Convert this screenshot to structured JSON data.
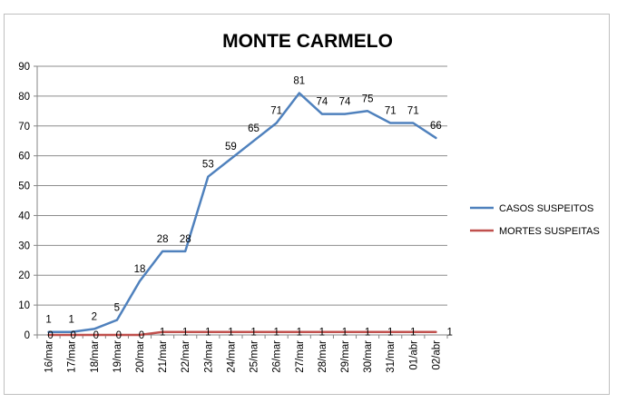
{
  "chart_data": {
    "type": "line",
    "title": "MONTE CARMELO",
    "xlabel": "",
    "ylabel": "",
    "ylim": [
      0,
      90
    ],
    "yticks": [
      0,
      10,
      20,
      30,
      40,
      50,
      60,
      70,
      80,
      90
    ],
    "grid": true,
    "legend_position": "right",
    "categories": [
      "16/mar",
      "17/mar",
      "18/mar",
      "19/mar",
      "20/mar",
      "21/mar",
      "22/mar",
      "23/mar",
      "24/mar",
      "25/mar",
      "26/mar",
      "27/mar",
      "28/mar",
      "29/mar",
      "30/mar",
      "31/mar",
      "01/abr",
      "02/abr"
    ],
    "series": [
      {
        "name": "CASOS SUSPEITOS",
        "color": "#4f81bd",
        "values": [
          1,
          1,
          2,
          5,
          18,
          28,
          28,
          53,
          59,
          65,
          71,
          81,
          74,
          74,
          75,
          71,
          71,
          66
        ]
      },
      {
        "name": "MORTES SUSPEITAS",
        "color": "#c0504d",
        "values": [
          0,
          0,
          0,
          0,
          0,
          1,
          1,
          1,
          1,
          1,
          1,
          1,
          1,
          1,
          1,
          1,
          1,
          1
        ]
      }
    ]
  }
}
